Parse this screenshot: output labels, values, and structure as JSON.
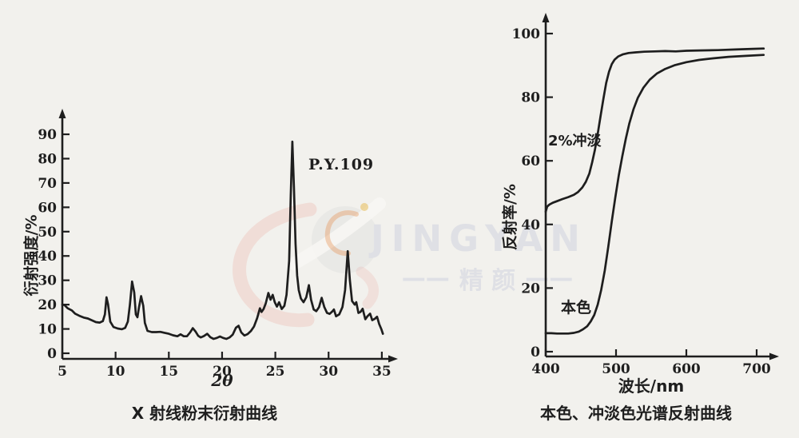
{
  "page": {
    "background": "#f2f1ed",
    "ink": "#1e1e1e"
  },
  "watermark": {
    "brand": "JINGYAN",
    "cjk": "精 颜",
    "dash": "——",
    "text_color": "#dfe0e5",
    "logo_pink": "#e8988a",
    "logo_gray": "#b9bac2",
    "logo_orange": "#e58a45",
    "logo_gold": "#e6b84a"
  },
  "chart_data": [
    {
      "type": "line",
      "title": "X 射线粉末衍射曲线",
      "xlabel": "2θ",
      "ylabel": "衍射强度/%",
      "annotation": "P.Y.109",
      "xlim": [
        5,
        35.2
      ],
      "ylim": [
        0,
        95
      ],
      "xticks": [
        5,
        10,
        15,
        20,
        25,
        30,
        35
      ],
      "yticks": [
        0,
        10,
        20,
        30,
        40,
        50,
        60,
        70,
        80,
        90
      ],
      "grid": false,
      "legend": "none",
      "series": [
        {
          "name": "P.Y.109 XRD trace",
          "points": [
            [
              5,
              20
            ],
            [
              5.2,
              19.8
            ],
            [
              5.5,
              18.5
            ],
            [
              5.9,
              17.6
            ],
            [
              6.2,
              16.3
            ],
            [
              6.6,
              15.4
            ],
            [
              7,
              14.7
            ],
            [
              7.4,
              14.3
            ],
            [
              7.8,
              13.5
            ],
            [
              8.15,
              12.8
            ],
            [
              8.5,
              12.6
            ],
            [
              8.8,
              13.2
            ],
            [
              9,
              16
            ],
            [
              9.15,
              23
            ],
            [
              9.3,
              20
            ],
            [
              9.5,
              13
            ],
            [
              9.8,
              10.8
            ],
            [
              10.2,
              10.2
            ],
            [
              10.6,
              9.9
            ],
            [
              10.9,
              10.4
            ],
            [
              11.15,
              13
            ],
            [
              11.35,
              20
            ],
            [
              11.55,
              29.5
            ],
            [
              11.75,
              25
            ],
            [
              11.9,
              16
            ],
            [
              12.05,
              14.8
            ],
            [
              12.2,
              19
            ],
            [
              12.4,
              23.5
            ],
            [
              12.6,
              19.5
            ],
            [
              12.75,
              12.5
            ],
            [
              13,
              9.2
            ],
            [
              13.4,
              8.7
            ],
            [
              13.8,
              8.7
            ],
            [
              14.2,
              8.8
            ],
            [
              14.6,
              8.4
            ],
            [
              15,
              8
            ],
            [
              15.4,
              7.4
            ],
            [
              15.8,
              7
            ],
            [
              16.1,
              7.8
            ],
            [
              16.4,
              7
            ],
            [
              16.7,
              7
            ],
            [
              17,
              8.6
            ],
            [
              17.25,
              10.3
            ],
            [
              17.5,
              9
            ],
            [
              17.75,
              7.2
            ],
            [
              18,
              6.5
            ],
            [
              18.3,
              7.1
            ],
            [
              18.6,
              8
            ],
            [
              18.9,
              6.6
            ],
            [
              19.2,
              5.9
            ],
            [
              19.5,
              6.3
            ],
            [
              19.8,
              6.9
            ],
            [
              20.1,
              6.3
            ],
            [
              20.4,
              5.9
            ],
            [
              20.7,
              6.5
            ],
            [
              21,
              7.7
            ],
            [
              21.3,
              10.5
            ],
            [
              21.55,
              11.3
            ],
            [
              21.8,
              8.6
            ],
            [
              22.1,
              7.3
            ],
            [
              22.4,
              7.9
            ],
            [
              22.7,
              9.1
            ],
            [
              23,
              11
            ],
            [
              23.3,
              14.5
            ],
            [
              23.55,
              18.5
            ],
            [
              23.7,
              17
            ],
            [
              23.9,
              18.2
            ],
            [
              24.1,
              20.5
            ],
            [
              24.35,
              24.8
            ],
            [
              24.55,
              22
            ],
            [
              24.75,
              24
            ],
            [
              24.95,
              21
            ],
            [
              25.15,
              19.2
            ],
            [
              25.35,
              21
            ],
            [
              25.6,
              18.2
            ],
            [
              25.85,
              19.5
            ],
            [
              26.05,
              24
            ],
            [
              26.3,
              38
            ],
            [
              26.45,
              65
            ],
            [
              26.6,
              87
            ],
            [
              26.75,
              68
            ],
            [
              26.9,
              45
            ],
            [
              27.05,
              32
            ],
            [
              27.2,
              26
            ],
            [
              27.4,
              22.5
            ],
            [
              27.65,
              21
            ],
            [
              27.9,
              23
            ],
            [
              28.15,
              28
            ],
            [
              28.35,
              22
            ],
            [
              28.6,
              18
            ],
            [
              28.85,
              17.3
            ],
            [
              29.1,
              19
            ],
            [
              29.35,
              22.8
            ],
            [
              29.6,
              19
            ],
            [
              29.85,
              16.6
            ],
            [
              30.1,
              16.2
            ],
            [
              30.35,
              17.2
            ],
            [
              30.5,
              18
            ],
            [
              30.7,
              15.2
            ],
            [
              31,
              16
            ],
            [
              31.3,
              19
            ],
            [
              31.55,
              26
            ],
            [
              31.8,
              42
            ],
            [
              32,
              30
            ],
            [
              32.2,
              21.5
            ],
            [
              32.45,
              20
            ],
            [
              32.6,
              21
            ],
            [
              32.8,
              16.6
            ],
            [
              33,
              17
            ],
            [
              33.2,
              18.3
            ],
            [
              33.45,
              14
            ],
            [
              33.65,
              15.2
            ],
            [
              33.9,
              16.3
            ],
            [
              34.1,
              13.6
            ],
            [
              34.35,
              14.2
            ],
            [
              34.55,
              15
            ],
            [
              34.75,
              12
            ],
            [
              34.95,
              10
            ],
            [
              35.1,
              8
            ]
          ]
        }
      ]
    },
    {
      "type": "line",
      "title": "本色、冲淡色光谱反射曲线",
      "xlabel": "波长/nm",
      "ylabel": "反射率/%",
      "xlim": [
        400,
        710
      ],
      "ylim": [
        0,
        105
      ],
      "xticks": [
        400,
        500,
        600,
        700
      ],
      "yticks": [
        0,
        20,
        40,
        60,
        80,
        100
      ],
      "grid": false,
      "legend": "inline-labels",
      "series": [
        {
          "name": "2%冲淡",
          "points": [
            [
              400,
              44
            ],
            [
              402,
              45.6
            ],
            [
              405,
              46.2
            ],
            [
              410,
              46.8
            ],
            [
              416,
              47.3
            ],
            [
              424,
              48
            ],
            [
              432,
              48.6
            ],
            [
              440,
              49.3
            ],
            [
              446,
              50.2
            ],
            [
              452,
              51.6
            ],
            [
              457,
              53.4
            ],
            [
              462,
              56
            ],
            [
              466,
              59.5
            ],
            [
              470,
              63.5
            ],
            [
              474,
              68.5
            ],
            [
              478,
              74
            ],
            [
              482,
              79.5
            ],
            [
              486,
              84.5
            ],
            [
              490,
              88
            ],
            [
              494,
              90.4
            ],
            [
              498,
              91.8
            ],
            [
              503,
              92.8
            ],
            [
              510,
              93.5
            ],
            [
              518,
              93.9
            ],
            [
              528,
              94.1
            ],
            [
              540,
              94.3
            ],
            [
              555,
              94.4
            ],
            [
              570,
              94.5
            ],
            [
              585,
              94.4
            ],
            [
              600,
              94.6
            ],
            [
              620,
              94.7
            ],
            [
              645,
              94.8
            ],
            [
              670,
              95
            ],
            [
              695,
              95.2
            ],
            [
              710,
              95.3
            ]
          ]
        },
        {
          "name": "本色",
          "points": [
            [
              400,
              5.8
            ],
            [
              408,
              5.8
            ],
            [
              416,
              5.7
            ],
            [
              424,
              5.7
            ],
            [
              432,
              5.7
            ],
            [
              440,
              5.9
            ],
            [
              447,
              6.3
            ],
            [
              453,
              7
            ],
            [
              459,
              8
            ],
            [
              464,
              9.5
            ],
            [
              469,
              11.5
            ],
            [
              474,
              14.8
            ],
            [
              479,
              19.5
            ],
            [
              484,
              25.5
            ],
            [
              489,
              33
            ],
            [
              494,
              41
            ],
            [
              499,
              48.5
            ],
            [
              504,
              55.5
            ],
            [
              509,
              61.5
            ],
            [
              514,
              67
            ],
            [
              519,
              71.8
            ],
            [
              525,
              76.3
            ],
            [
              531,
              79.8
            ],
            [
              539,
              83
            ],
            [
              548,
              85.5
            ],
            [
              558,
              87.4
            ],
            [
              570,
              88.9
            ],
            [
              584,
              90.1
            ],
            [
              600,
              91
            ],
            [
              618,
              91.7
            ],
            [
              638,
              92.2
            ],
            [
              660,
              92.7
            ],
            [
              685,
              93
            ],
            [
              710,
              93.3
            ]
          ]
        }
      ]
    }
  ]
}
